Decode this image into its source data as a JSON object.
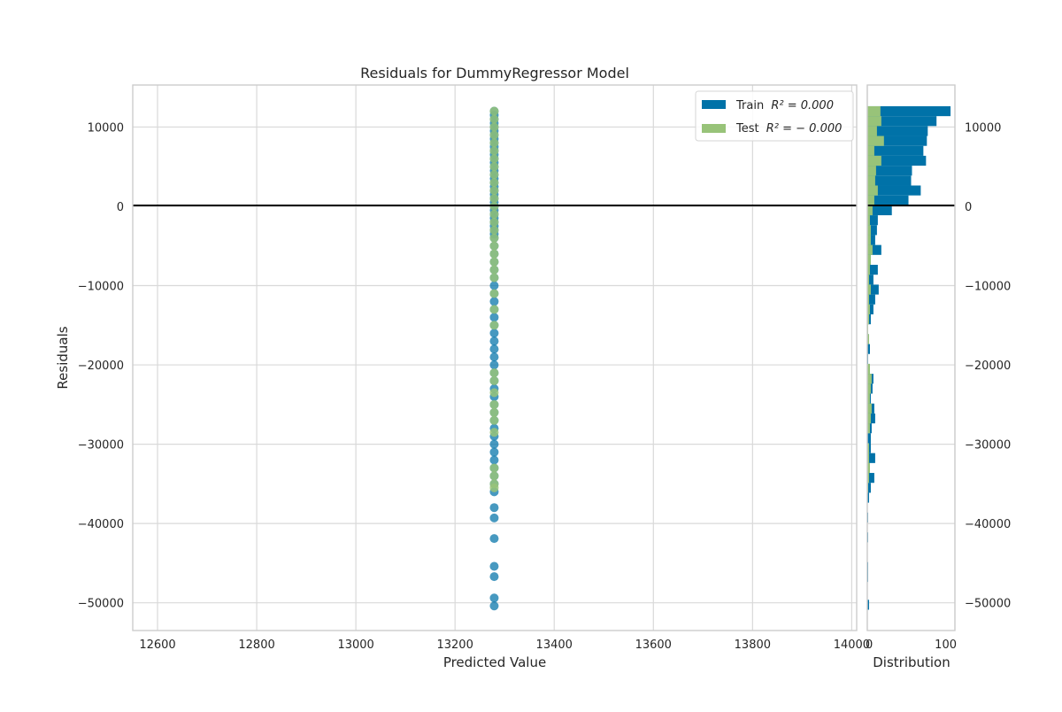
{
  "chart_data": {
    "type": "scatter",
    "title": "Residuals for DummyRegressor Model",
    "xlabel": "Predicted Value",
    "ylabel": "Residuals",
    "xlim": [
      12550,
      14010
    ],
    "ylim": [
      -53500,
      15300
    ],
    "x_ticks": [
      12600,
      12800,
      13000,
      13200,
      13400,
      13600,
      13800,
      14000
    ],
    "y_ticks": [
      10000,
      0,
      -10000,
      -20000,
      -30000,
      -40000,
      -50000
    ],
    "x_tick_labels": [
      "12600",
      "12800",
      "13000",
      "13200",
      "13400",
      "13600",
      "13800",
      "14000"
    ],
    "y_tick_labels": [
      "10000",
      "0",
      "−10000",
      "−20000",
      "−30000",
      "−40000",
      "−50000"
    ],
    "grid": true,
    "legend_position": "top-right",
    "zero_line": 0,
    "series": [
      {
        "name": "Train $R^2 = 0.000$",
        "legend_label": "Train",
        "legend_math": "R² = 0.000",
        "color": "#0072a8",
        "x_constant": 13279,
        "y_values": [
          12000,
          11500,
          11000,
          10500,
          10000,
          9500,
          9000,
          8500,
          8000,
          7500,
          7000,
          6500,
          6000,
          5500,
          5000,
          4500,
          4000,
          3500,
          3000,
          2500,
          2000,
          1500,
          1000,
          500,
          0,
          -500,
          -1000,
          -1500,
          -2000,
          -2500,
          -3000,
          -3500,
          -4000,
          -5000,
          -6000,
          -7000,
          -8000,
          -9000,
          -10000,
          -11000,
          -12000,
          -13000,
          -14000,
          -15000,
          -16000,
          -17000,
          -18000,
          -19000,
          -20000,
          -21000,
          -22000,
          -23000,
          -24000,
          -25000,
          -26000,
          -27000,
          -28000,
          -29000,
          -30000,
          -31000,
          -32000,
          -33000,
          -34000,
          -35000,
          -36000,
          -38000,
          -39300,
          -41900,
          -45400,
          -46700,
          -49400,
          -50400
        ]
      },
      {
        "name": "Test $R^2 = -0.000$",
        "legend_label": "Test",
        "legend_math": "R² = − 0.000",
        "color": "#98c379",
        "x_constant": 13279,
        "y_values": [
          12000,
          11000,
          10000,
          9000,
          8000,
          7000,
          6000,
          5000,
          4000,
          3000,
          2000,
          1000,
          0,
          -1000,
          -2000,
          -3000,
          -4000,
          -5000,
          -6000,
          -7000,
          -8000,
          -9000,
          -11000,
          -13000,
          -15000,
          -21000,
          -22000,
          -23500,
          -25000,
          -26000,
          -27000,
          -28500,
          -33000,
          -34000,
          -35000,
          -35500
        ]
      }
    ],
    "distribution": {
      "xlabel": "Distribution",
      "xlim": [
        0,
        100
      ],
      "x_ticks": [
        0,
        100
      ],
      "x_tick_labels": [
        "0",
        "100"
      ],
      "bin_height": 1250,
      "train_bins": [
        {
          "y": 12000,
          "v": 95
        },
        {
          "y": 10750,
          "v": 79
        },
        {
          "y": 9500,
          "v": 69
        },
        {
          "y": 8250,
          "v": 68
        },
        {
          "y": 7000,
          "v": 64
        },
        {
          "y": 5750,
          "v": 67
        },
        {
          "y": 4500,
          "v": 51
        },
        {
          "y": 3250,
          "v": 50
        },
        {
          "y": 2000,
          "v": 61
        },
        {
          "y": 750,
          "v": 47
        },
        {
          "y": -500,
          "v": 28
        },
        {
          "y": -1750,
          "v": 12
        },
        {
          "y": -3000,
          "v": 11
        },
        {
          "y": -4250,
          "v": 9
        },
        {
          "y": -5500,
          "v": 16
        },
        {
          "y": -6750,
          "v": 4
        },
        {
          "y": -8000,
          "v": 12
        },
        {
          "y": -9250,
          "v": 7
        },
        {
          "y": -10500,
          "v": 13
        },
        {
          "y": -11750,
          "v": 9
        },
        {
          "y": -13000,
          "v": 7
        },
        {
          "y": -14250,
          "v": 4
        },
        {
          "y": -15500,
          "v": 1
        },
        {
          "y": -16750,
          "v": 2
        },
        {
          "y": -18000,
          "v": 3
        },
        {
          "y": -19250,
          "v": 1
        },
        {
          "y": -20500,
          "v": 3
        },
        {
          "y": -21750,
          "v": 7
        },
        {
          "y": -23000,
          "v": 6
        },
        {
          "y": -24250,
          "v": 4
        },
        {
          "y": -25500,
          "v": 8
        },
        {
          "y": -26750,
          "v": 9
        },
        {
          "y": -28000,
          "v": 5
        },
        {
          "y": -29250,
          "v": 4
        },
        {
          "y": -30500,
          "v": 4
        },
        {
          "y": -31750,
          "v": 9
        },
        {
          "y": -33000,
          "v": 3
        },
        {
          "y": -34250,
          "v": 8
        },
        {
          "y": -35500,
          "v": 4
        },
        {
          "y": -36750,
          "v": 2
        },
        {
          "y": -39250,
          "v": 1
        },
        {
          "y": -41750,
          "v": 1
        },
        {
          "y": -45500,
          "v": 1
        },
        {
          "y": -46750,
          "v": 1
        },
        {
          "y": -50250,
          "v": 2
        }
      ],
      "test_bins": [
        {
          "y": 12000,
          "v": 15
        },
        {
          "y": 10750,
          "v": 16
        },
        {
          "y": 9500,
          "v": 11
        },
        {
          "y": 8250,
          "v": 19
        },
        {
          "y": 7000,
          "v": 8
        },
        {
          "y": 5750,
          "v": 16
        },
        {
          "y": 4500,
          "v": 10
        },
        {
          "y": 3250,
          "v": 9
        },
        {
          "y": 2000,
          "v": 12
        },
        {
          "y": 750,
          "v": 8
        },
        {
          "y": -500,
          "v": 6
        },
        {
          "y": -1750,
          "v": 3
        },
        {
          "y": -3000,
          "v": 4
        },
        {
          "y": -4250,
          "v": 4
        },
        {
          "y": -5500,
          "v": 6
        },
        {
          "y": -6750,
          "v": 4
        },
        {
          "y": -8000,
          "v": 3
        },
        {
          "y": -9250,
          "v": 2
        },
        {
          "y": -10500,
          "v": 4
        },
        {
          "y": -11750,
          "v": 2
        },
        {
          "y": -13000,
          "v": 3
        },
        {
          "y": -14250,
          "v": 2
        },
        {
          "y": -15500,
          "v": 1
        },
        {
          "y": -16750,
          "v": 2
        },
        {
          "y": -20500,
          "v": 3
        },
        {
          "y": -21750,
          "v": 5
        },
        {
          "y": -23000,
          "v": 4
        },
        {
          "y": -24250,
          "v": 3
        },
        {
          "y": -25500,
          "v": 5
        },
        {
          "y": -26750,
          "v": 4
        },
        {
          "y": -28000,
          "v": 3
        },
        {
          "y": -30500,
          "v": 2
        },
        {
          "y": -31750,
          "v": 2
        },
        {
          "y": -33000,
          "v": 3
        },
        {
          "y": -34250,
          "v": 2
        },
        {
          "y": -35500,
          "v": 1
        }
      ]
    }
  }
}
